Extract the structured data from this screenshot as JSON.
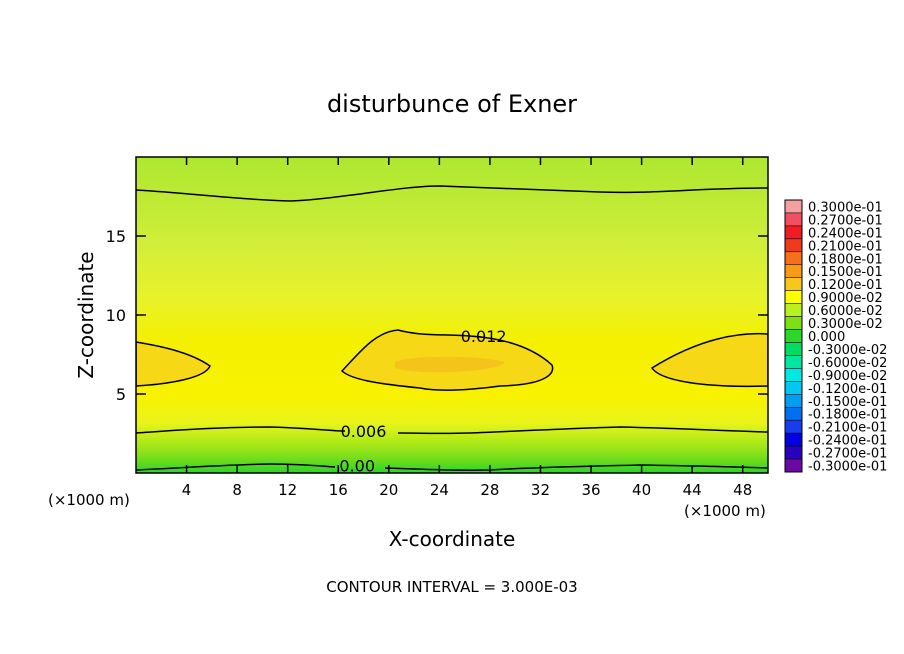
{
  "chart_data": {
    "type": "heatmap",
    "title": "disturbunce of Exner",
    "xlabel": "X-coordinate",
    "ylabel": "Z-coordinate",
    "x_unit_left": "(×1000 m)",
    "x_unit_right": "(×1000 m)",
    "xlim": [
      0,
      50
    ],
    "ylim": [
      0,
      20
    ],
    "x_ticks": [
      4,
      8,
      12,
      16,
      20,
      24,
      28,
      32,
      36,
      40,
      44,
      48
    ],
    "y_ticks": [
      5,
      10,
      15
    ],
    "footnote": "CONTOUR INTERVAL = 3.000E-03",
    "contour_labels": [
      {
        "text": "0.012",
        "x": 27.5,
        "z": 8.6
      },
      {
        "text": "0.006",
        "x": 18.0,
        "z": 2.6
      },
      {
        "text": "0.00",
        "x": 17.5,
        "z": 0.4
      }
    ],
    "colorbar": {
      "labels": [
        "0.3000e-01",
        "0.2700e-01",
        "0.2400e-01",
        "0.2100e-01",
        "0.1800e-01",
        "0.1500e-01",
        "0.1200e-01",
        "0.9000e-02",
        "0.6000e-02",
        "0.3000e-02",
        "0.000",
        "-0.3000e-02",
        "-0.6000e-02",
        "-0.9000e-02",
        "-0.1200e-01",
        "-0.1500e-01",
        "-0.1800e-01",
        "-0.2100e-01",
        "-0.2400e-01",
        "-0.2700e-01",
        "-0.3000e-01"
      ],
      "colors": [
        "#f4a0a0",
        "#f05060",
        "#ee1c24",
        "#f03a1c",
        "#f5701a",
        "#f79a16",
        "#f7c81c",
        "#ffff00",
        "#b8f020",
        "#7ce014",
        "#2cd62c",
        "#00dd60",
        "#00e8a0",
        "#00e8e0",
        "#00c8f0",
        "#00a0f0",
        "#0070f0",
        "#1a3cf0",
        "#0000e0",
        "#2800c0",
        "#6a0aa0"
      ]
    }
  }
}
